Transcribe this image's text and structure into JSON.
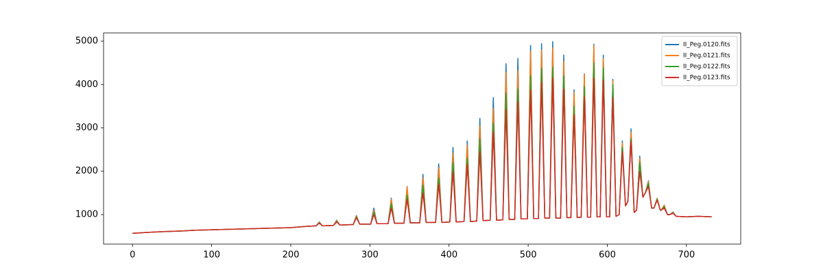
{
  "chart_data": {
    "type": "line",
    "x": [
      0,
      20,
      40,
      60,
      80,
      100,
      120,
      140,
      160,
      180,
      200,
      220,
      232,
      236,
      240,
      254,
      258,
      262,
      279,
      283,
      287,
      301,
      305,
      309,
      323,
      327,
      331,
      343,
      347,
      351,
      363,
      367,
      371,
      383,
      387,
      391,
      401,
      405,
      409,
      419,
      423,
      427,
      435,
      439,
      443,
      452,
      456,
      460,
      468,
      472,
      476,
      483,
      487,
      491,
      499,
      503,
      507,
      513,
      517,
      521,
      527,
      531,
      535,
      541,
      545,
      549,
      554,
      558,
      562,
      567,
      571,
      575,
      579,
      583,
      587,
      591,
      595,
      599,
      603,
      607,
      611,
      615,
      619,
      623,
      626,
      630,
      634,
      637,
      641,
      645,
      648,
      652,
      656,
      659,
      663,
      667,
      668,
      672,
      676,
      679,
      683,
      687,
      700,
      715,
      732
    ],
    "series": [
      {
        "name": "II_Peg.0120.fits",
        "color": "#1f77b4",
        "values": [
          570,
          590,
          610,
          620,
          640,
          650,
          660,
          670,
          680,
          690,
          700,
          730,
          740,
          830,
          740,
          750,
          870,
          760,
          770,
          980,
          780,
          780,
          1150,
          790,
          790,
          1380,
          800,
          800,
          1650,
          810,
          810,
          1930,
          820,
          820,
          2170,
          820,
          830,
          2550,
          830,
          840,
          2700,
          840,
          850,
          3220,
          860,
          870,
          3700,
          870,
          880,
          4480,
          890,
          890,
          4600,
          900,
          900,
          4900,
          910,
          910,
          4940,
          920,
          920,
          4990,
          920,
          920,
          4680,
          930,
          930,
          3880,
          930,
          940,
          4250,
          940,
          940,
          4930,
          950,
          950,
          4680,
          950,
          950,
          4120,
          960,
          1000,
          2700,
          1200,
          1300,
          2980,
          1050,
          1100,
          2350,
          1400,
          1500,
          1780,
          1150,
          1150,
          1380,
          1100,
          1100,
          1220,
          1000,
          1000,
          1060,
          960,
          950,
          960,
          950
        ]
      },
      {
        "name": "II_Peg.0121.fits",
        "color": "#ff7f0e",
        "values": [
          570,
          590,
          610,
          620,
          640,
          650,
          660,
          670,
          680,
          690,
          700,
          730,
          740,
          820,
          740,
          750,
          860,
          760,
          770,
          970,
          780,
          780,
          1100,
          790,
          790,
          1350,
          800,
          800,
          1640,
          810,
          810,
          1850,
          820,
          820,
          2080,
          820,
          830,
          2420,
          830,
          840,
          2600,
          840,
          850,
          3050,
          860,
          870,
          3450,
          870,
          880,
          4280,
          890,
          890,
          4320,
          900,
          900,
          4770,
          910,
          910,
          4800,
          920,
          920,
          4850,
          920,
          920,
          4530,
          930,
          930,
          3820,
          930,
          940,
          4240,
          940,
          940,
          4900,
          950,
          950,
          4600,
          950,
          950,
          4080,
          960,
          1000,
          2650,
          1200,
          1300,
          2900,
          1050,
          1100,
          2300,
          1400,
          1500,
          1760,
          1150,
          1150,
          1370,
          1100,
          1100,
          1210,
          1000,
          1000,
          1050,
          960,
          950,
          960,
          950
        ]
      },
      {
        "name": "II_Peg.0122.fits",
        "color": "#2ca02c",
        "values": [
          570,
          590,
          610,
          620,
          640,
          650,
          660,
          670,
          680,
          690,
          700,
          730,
          740,
          810,
          740,
          750,
          840,
          760,
          770,
          950,
          780,
          780,
          1050,
          790,
          790,
          1250,
          800,
          800,
          1450,
          810,
          810,
          1680,
          820,
          820,
          1850,
          820,
          830,
          2200,
          830,
          840,
          2300,
          840,
          850,
          2750,
          860,
          870,
          3100,
          870,
          880,
          3800,
          890,
          890,
          3900,
          900,
          900,
          4200,
          910,
          910,
          4380,
          920,
          920,
          4400,
          920,
          920,
          4200,
          930,
          930,
          3500,
          930,
          940,
          3950,
          940,
          940,
          4500,
          950,
          950,
          4380,
          950,
          950,
          4000,
          960,
          1000,
          2550,
          1200,
          1300,
          2750,
          1050,
          1100,
          2200,
          1400,
          1500,
          1720,
          1150,
          1150,
          1350,
          1100,
          1100,
          1180,
          1000,
          1000,
          1040,
          960,
          950,
          960,
          950
        ]
      },
      {
        "name": "II_Peg.0123.fits",
        "color": "#d62728",
        "values": [
          570,
          590,
          610,
          620,
          640,
          650,
          660,
          670,
          680,
          690,
          700,
          730,
          740,
          800,
          740,
          750,
          830,
          760,
          770,
          930,
          780,
          780,
          1000,
          790,
          790,
          1150,
          800,
          800,
          1350,
          810,
          810,
          1500,
          820,
          820,
          1700,
          820,
          830,
          1980,
          830,
          840,
          2150,
          840,
          850,
          2450,
          860,
          870,
          2900,
          870,
          880,
          3420,
          890,
          890,
          3600,
          900,
          900,
          3880,
          910,
          910,
          4050,
          920,
          920,
          4150,
          920,
          920,
          3900,
          930,
          930,
          3300,
          930,
          940,
          3720,
          940,
          940,
          4150,
          950,
          950,
          4100,
          950,
          950,
          3700,
          960,
          1000,
          2450,
          1200,
          1300,
          2700,
          1050,
          1100,
          2000,
          1400,
          1500,
          1650,
          1150,
          1150,
          1330,
          1100,
          1100,
          1150,
          1000,
          1000,
          1030,
          960,
          950,
          960,
          950
        ]
      }
    ],
    "xlim": [
      -36.6,
      768.6
    ],
    "ylim": [
      320,
      5190
    ],
    "xticks": [
      0,
      100,
      200,
      300,
      400,
      500,
      600,
      700
    ],
    "yticks": [
      1000,
      2000,
      3000,
      4000,
      5000
    ],
    "legend": "upper right"
  }
}
